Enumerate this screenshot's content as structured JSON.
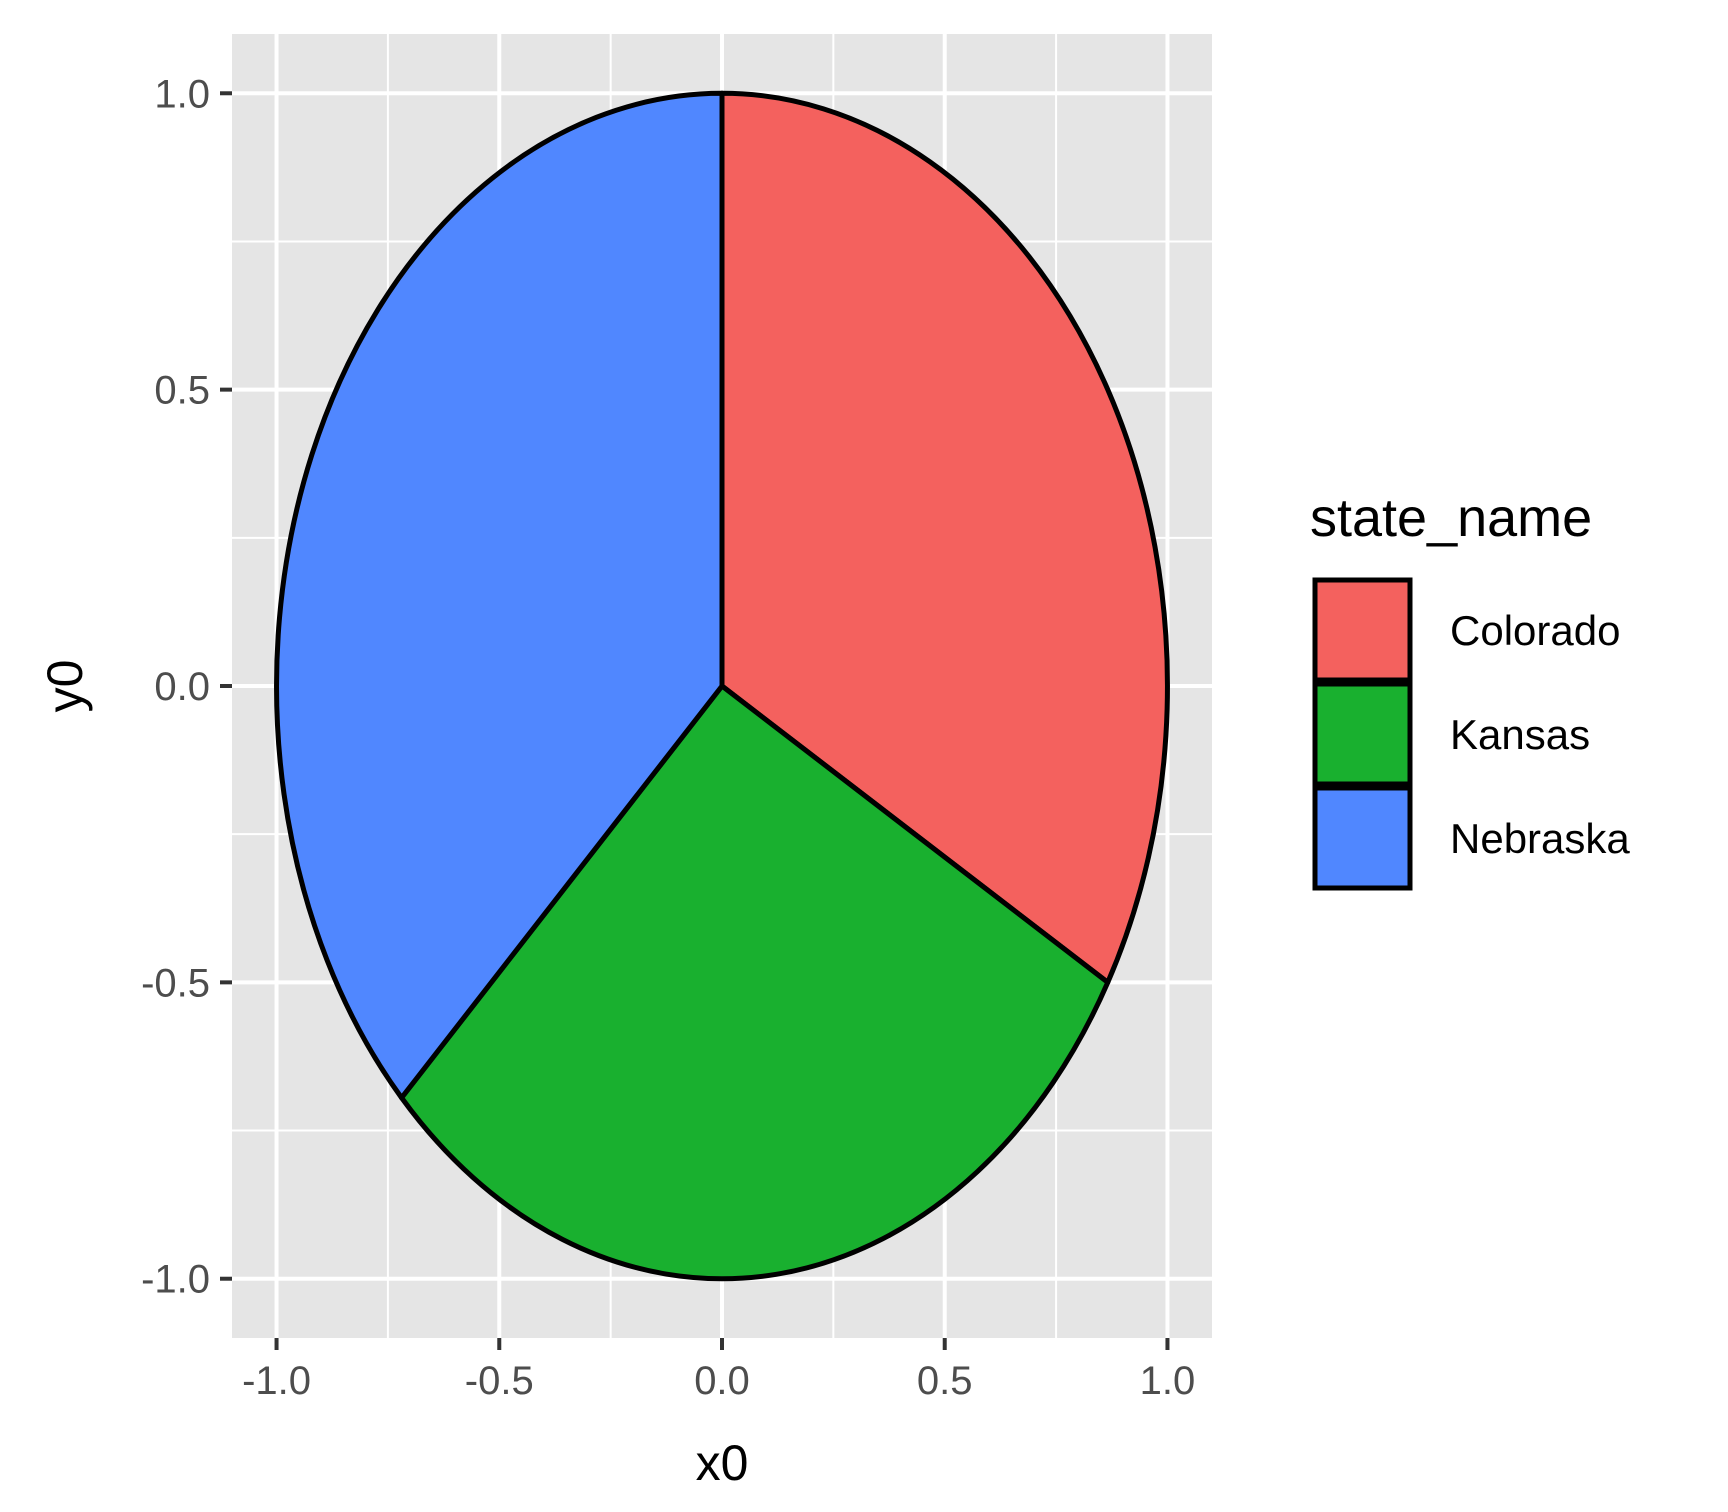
{
  "chart_data": {
    "type": "pie",
    "xlabel": "x0",
    "ylabel": "y0",
    "xlim": [
      -1.1,
      1.1
    ],
    "ylim": [
      -1.1,
      1.1
    ],
    "x_ticks": [
      "-1.0",
      "-0.5",
      "0.0",
      "0.5",
      "1.0"
    ],
    "y_ticks": [
      "-1.0",
      "-0.5",
      "0.0",
      "0.5",
      "1.0"
    ],
    "grid": true,
    "legend": {
      "title": "state_name",
      "position": "right"
    },
    "slices": [
      {
        "name": "Colorado",
        "start_deg": 0,
        "end_deg": 120,
        "color": "#F4615E"
      },
      {
        "name": "Kansas",
        "start_deg": 120,
        "end_deg": 226,
        "color": "#19B02F"
      },
      {
        "name": "Nebraska",
        "start_deg": 226,
        "end_deg": 360,
        "color": "#5087FF"
      }
    ],
    "panel_color": "#E5E5E5",
    "grid_color": "#FFFFFF",
    "outline_color": "#000000"
  }
}
